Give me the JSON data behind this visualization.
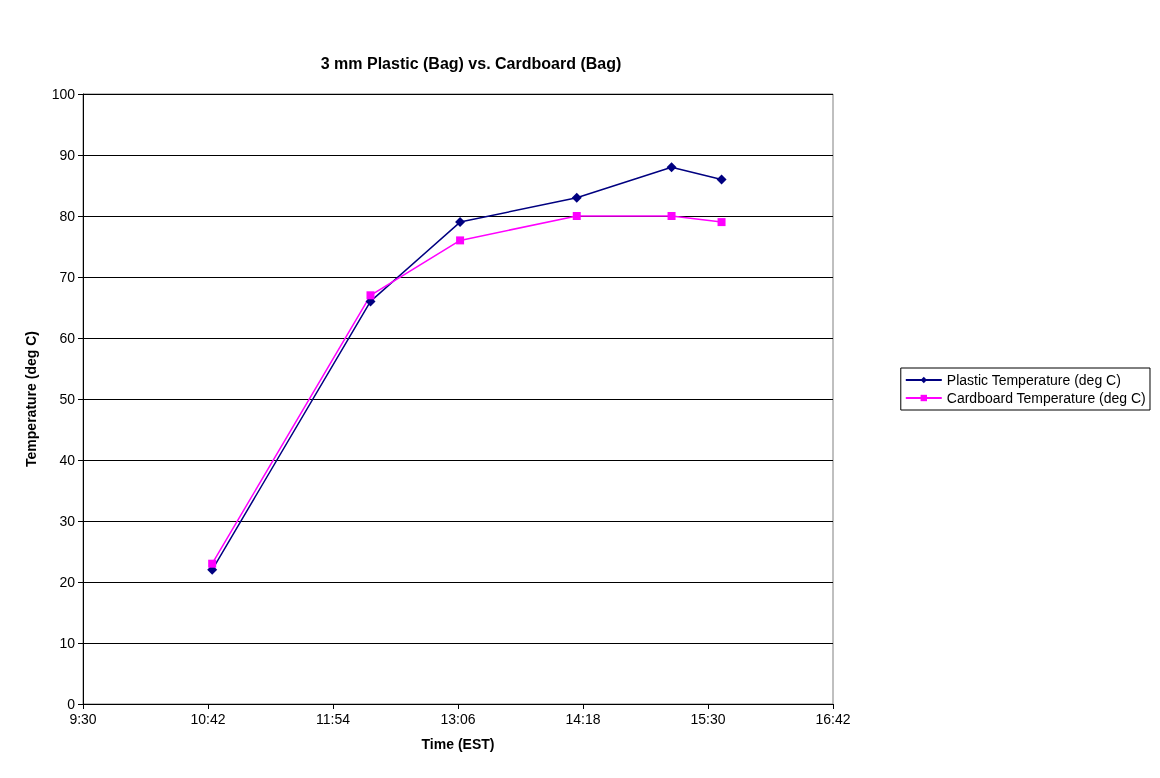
{
  "chart_data": {
    "type": "line",
    "title": "3 mm Plastic (Bag) vs. Cardboard (Bag)",
    "xlabel": "Time (EST)",
    "ylabel": "Temperature (deg C)",
    "x": [
      10.74,
      12.26,
      13.12,
      14.24,
      15.15,
      15.63
    ],
    "series": [
      {
        "name": "Plastic Temperature (deg C)",
        "color": "#000080",
        "marker": "diamond",
        "values": [
          22,
          66,
          79,
          83,
          88,
          86
        ]
      },
      {
        "name": "Cardboard Temperature (deg C)",
        "color": "#ff00ff",
        "marker": "square",
        "values": [
          23,
          67,
          76,
          80,
          80,
          79
        ]
      }
    ],
    "xlim": [
      9.5,
      16.7
    ],
    "xticks": [
      {
        "value": 9.5,
        "label": "9:30"
      },
      {
        "value": 10.7,
        "label": "10:42"
      },
      {
        "value": 11.9,
        "label": "11:54"
      },
      {
        "value": 13.1,
        "label": "13:06"
      },
      {
        "value": 14.3,
        "label": "14:18"
      },
      {
        "value": 15.5,
        "label": "15:30"
      },
      {
        "value": 16.7,
        "label": "16:42"
      }
    ],
    "ylim": [
      0,
      100
    ],
    "yticks": [
      0,
      10,
      20,
      30,
      40,
      50,
      60,
      70,
      80,
      90,
      100
    ],
    "grid": "y",
    "legend": "right",
    "line_style": "solid"
  }
}
